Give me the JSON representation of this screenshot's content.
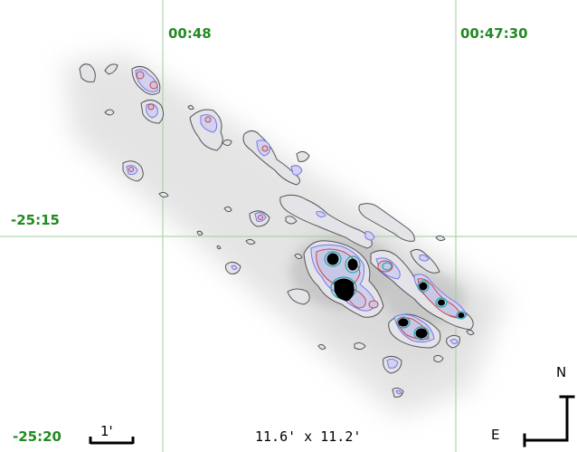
{
  "grid": {
    "ra_labels": [
      "00:48",
      "00:47:30"
    ],
    "dec_labels": [
      "-25:15",
      "-25:20"
    ],
    "color": "#228b22"
  },
  "overlay": {
    "fov": "11.6' x 11.2'",
    "scale_bar_label": "1'",
    "north_label": "N",
    "east_label": "E"
  },
  "contours": {
    "levels": [
      "outer",
      "mid",
      "inner",
      "core"
    ],
    "colors": {
      "outer": "#555555",
      "mid": "#7777ee",
      "inner": "#cc4444",
      "peak": "#22aaaa",
      "core": "#000000"
    }
  }
}
